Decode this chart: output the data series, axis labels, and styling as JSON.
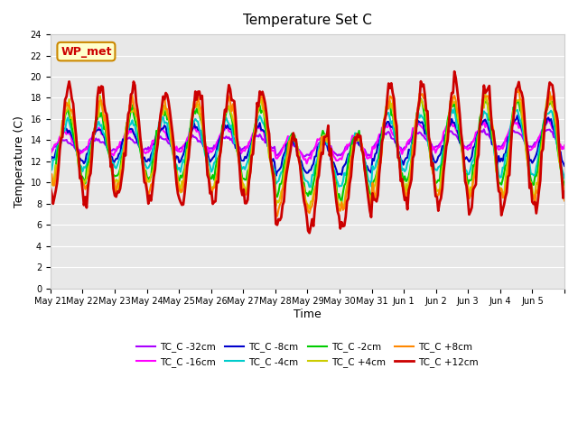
{
  "title": "Temperature Set C",
  "xlabel": "Time",
  "ylabel": "Temperature (C)",
  "ylim": [
    0,
    24
  ],
  "yticks": [
    0,
    2,
    4,
    6,
    8,
    10,
    12,
    14,
    16,
    18,
    20,
    22,
    24
  ],
  "bg_color": "#e8e8e8",
  "fig_color": "#ffffff",
  "wp_met_label": "WP_met",
  "wp_met_bg": "#ffffcc",
  "wp_met_border": "#cc8800",
  "wp_met_text": "#cc0000",
  "series": [
    {
      "label": "TC_C -32cm",
      "color": "#aa00ff",
      "lw": 1.5
    },
    {
      "label": "TC_C -16cm",
      "color": "#ff00ff",
      "lw": 1.5
    },
    {
      "label": "TC_C -8cm",
      "color": "#0000cc",
      "lw": 1.5
    },
    {
      "label": "TC_C -4cm",
      "color": "#00cccc",
      "lw": 1.5
    },
    {
      "label": "TC_C -2cm",
      "color": "#00cc00",
      "lw": 1.5
    },
    {
      "label": "TC_C +4cm",
      "color": "#cccc00",
      "lw": 1.5
    },
    {
      "label": "TC_C +8cm",
      "color": "#ff8800",
      "lw": 1.5
    },
    {
      "label": "TC_C +12cm",
      "color": "#cc0000",
      "lw": 2.0
    }
  ],
  "x_labels": [
    "May 21",
    "May 22",
    "May 23",
    "May 24",
    "May 25",
    "May 26",
    "May 27",
    "May 28",
    "May 29",
    "May 30",
    "May 31",
    "Jun 1",
    "Jun 2",
    "Jun 3",
    "Jun 4",
    "Jun 5"
  ],
  "n_days": 16
}
